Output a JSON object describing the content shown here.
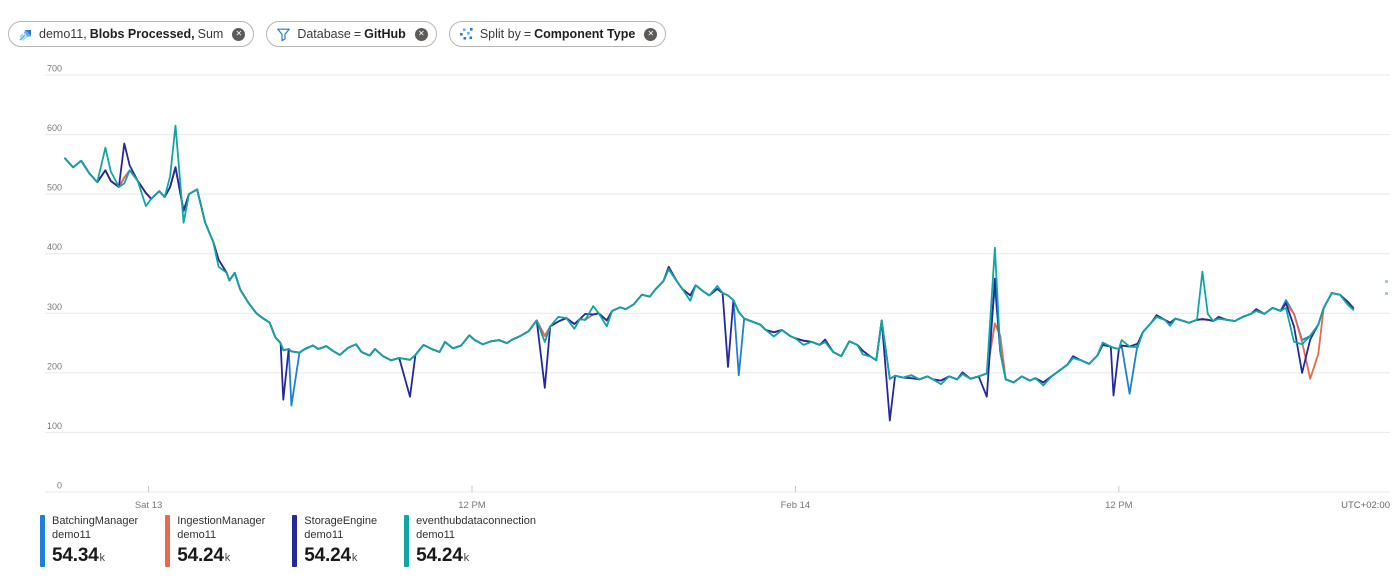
{
  "pills": [
    {
      "icon": "metrics-chart-icon",
      "seg1": "demo11,",
      "seg2": "Blobs Processed,",
      "seg3": "Sum",
      "close": "✕"
    },
    {
      "icon": "filter-funnel-icon",
      "label": "Database",
      "eq": "=",
      "value": "GitHub",
      "close": "✕"
    },
    {
      "icon": "split-by-icon",
      "label": "Split by",
      "eq": "=",
      "value": "Component Type",
      "close": "✕"
    }
  ],
  "ui": {
    "pill_icon_blue": "#2f76d2",
    "pill_icon_light_blue": "#5eb2f2",
    "grid_color": "#e8e8e8",
    "tick_color": "#c8c6c4",
    "axis_label_color": "#7a7875",
    "edge_marker_color": "#a9c7e8"
  },
  "legend": {
    "items": [
      {
        "name": "BatchingManager",
        "scope": "demo11",
        "value": "54.34",
        "unit": "k",
        "color": "#1f7ed8"
      },
      {
        "name": "IngestionManager",
        "scope": "demo11",
        "value": "54.24",
        "unit": "k",
        "color": "#e8694e"
      },
      {
        "name": "StorageEngine",
        "scope": "demo11",
        "value": "54.24",
        "unit": "k",
        "color": "#242a9b"
      },
      {
        "name": "eventhubdataconnection",
        "scope": "demo11",
        "value": "54.24",
        "unit": "k",
        "color": "#12a5a6"
      }
    ]
  },
  "chart_data": {
    "type": "line",
    "title": "demo11, Blobs Processed, Sum — split by Component Type (filter Database = GitHub)",
    "y_axis": {
      "min": 0,
      "max": 700,
      "step": 100
    },
    "x_axis": {
      "domain_hours": [
        -3.1,
        46.06
      ],
      "ticks": [
        {
          "h": 0,
          "label": "Sat 13"
        },
        {
          "h": 12,
          "label": "12 PM"
        },
        {
          "h": 24,
          "label": "Feb 14"
        },
        {
          "h": 36,
          "label": "12 PM"
        }
      ],
      "timezone_label": "UTC+02:00"
    },
    "x_hours": [
      -3.1,
      -2.8,
      -2.5,
      -2.2,
      -1.9,
      -1.6,
      -1.4,
      -1.1,
      -0.9,
      -0.7,
      -0.4,
      -0.1,
      0.1,
      0.4,
      0.6,
      0.8,
      1.0,
      1.3,
      1.5,
      1.8,
      2.1,
      2.4,
      2.6,
      2.9,
      3.0,
      3.2,
      3.4,
      3.7,
      4.0,
      4.2,
      4.5,
      4.7,
      4.9,
      5.0,
      5.2,
      5.3,
      5.6,
      5.8,
      6.1,
      6.3,
      6.6,
      6.8,
      7.1,
      7.4,
      7.7,
      7.9,
      8.2,
      8.4,
      8.7,
      9.0,
      9.3,
      9.7,
      9.9,
      10.2,
      10.5,
      10.8,
      11.0,
      11.3,
      11.6,
      11.9,
      12.1,
      12.4,
      12.7,
      13.0,
      13.3,
      13.5,
      13.8,
      14.1,
      14.4,
      14.7,
      14.9,
      15.2,
      15.5,
      15.8,
      16.0,
      16.2,
      16.5,
      16.7,
      17.0,
      17.2,
      17.5,
      17.7,
      18.0,
      18.3,
      18.6,
      18.8,
      19.1,
      19.3,
      19.6,
      19.8,
      20.1,
      20.3,
      20.6,
      20.8,
      21.1,
      21.3,
      21.5,
      21.7,
      21.9,
      22.1,
      22.4,
      22.7,
      22.9,
      23.2,
      23.5,
      23.8,
      24.0,
      24.3,
      24.6,
      24.9,
      25.1,
      25.4,
      25.7,
      26.0,
      26.3,
      26.5,
      26.8,
      27.0,
      27.2,
      27.5,
      27.7,
      28.0,
      28.3,
      28.6,
      28.9,
      29.1,
      29.4,
      29.7,
      30.0,
      30.2,
      30.5,
      30.8,
      31.1,
      31.4,
      31.6,
      31.8,
      32.1,
      32.4,
      32.7,
      32.9,
      33.2,
      33.5,
      33.8,
      34.1,
      34.3,
      34.6,
      34.9,
      35.2,
      35.4,
      35.7,
      35.8,
      36.0,
      36.1,
      36.4,
      36.7,
      36.9,
      37.2,
      37.4,
      37.7,
      37.9,
      38.1,
      38.4,
      38.6,
      38.9,
      39.1,
      39.3,
      39.5,
      39.7,
      40.0,
      40.3,
      40.6,
      40.9,
      41.1,
      41.4,
      41.7,
      42.0,
      42.2,
      42.5,
      42.8,
      43.1,
      43.4,
      43.6,
      43.9,
      44.2,
      44.5,
      44.7
    ],
    "base_values": [
      560,
      545,
      556,
      535,
      520,
      540,
      522,
      512,
      528,
      540,
      522,
      502,
      492,
      505,
      495,
      512,
      545,
      472,
      500,
      508,
      452,
      420,
      390,
      368,
      355,
      368,
      340,
      318,
      300,
      293,
      284,
      260,
      250,
      238,
      240,
      236,
      234,
      240,
      246,
      240,
      245,
      238,
      230,
      242,
      248,
      235,
      229,
      240,
      228,
      221,
      225,
      222,
      230,
      247,
      240,
      235,
      252,
      241,
      246,
      263,
      255,
      248,
      253,
      255,
      250,
      256,
      262,
      270,
      288,
      262,
      278,
      286,
      292,
      282,
      290,
      289,
      298,
      300,
      288,
      304,
      310,
      307,
      315,
      331,
      328,
      340,
      354,
      374,
      354,
      341,
      330,
      347,
      336,
      330,
      341,
      334,
      330,
      322,
      302,
      291,
      286,
      281,
      272,
      268,
      272,
      262,
      258,
      254,
      252,
      247,
      252,
      235,
      228,
      253,
      247,
      237,
      227,
      221,
      288,
      190,
      195,
      192,
      196,
      189,
      194,
      189,
      187,
      194,
      189,
      198,
      190,
      194,
      199,
      345,
      235,
      189,
      184,
      194,
      187,
      191,
      184,
      194,
      204,
      214,
      225,
      221,
      215,
      229,
      247,
      244,
      242,
      240,
      246,
      244,
      249,
      269,
      284,
      294,
      289,
      284,
      291,
      287,
      284,
      289,
      290,
      289,
      287,
      291,
      289,
      287,
      294,
      299,
      304,
      299,
      309,
      304,
      317,
      299,
      252,
      262,
      281,
      309,
      334,
      331,
      319,
      306
    ],
    "series": [
      {
        "name": "BatchingManager",
        "scope": "demo11",
        "legend_value": "54.34k",
        "color": "#1f7ed8",
        "overrides": [
          [
            5.3,
            145
          ],
          [
            21.9,
            196
          ],
          [
            36.4,
            165
          ],
          [
            42.2,
            322
          ],
          [
            42.8,
            255
          ]
        ]
      },
      {
        "name": "IngestionManager",
        "scope": "demo11",
        "legend_value": "54.24k",
        "color": "#e8694e",
        "overrides": [
          [
            31.4,
            283
          ],
          [
            31.6,
            262
          ],
          [
            43.1,
            190
          ],
          [
            43.4,
            232
          ]
        ]
      },
      {
        "name": "StorageEngine",
        "scope": "demo11",
        "legend_value": "54.24k",
        "color": "#242a9b",
        "overrides": [
          [
            -0.9,
            585
          ],
          [
            -0.7,
            548
          ],
          [
            5.0,
            155
          ],
          [
            9.7,
            160
          ],
          [
            14.7,
            175
          ],
          [
            16.2,
            299
          ],
          [
            19.3,
            378
          ],
          [
            21.5,
            210
          ],
          [
            25.1,
            256
          ],
          [
            27.5,
            120
          ],
          [
            28.3,
            191
          ],
          [
            30.2,
            201
          ],
          [
            31.1,
            160
          ],
          [
            31.4,
            358
          ],
          [
            34.3,
            228
          ],
          [
            35.8,
            162
          ],
          [
            37.4,
            297
          ],
          [
            39.7,
            294
          ],
          [
            41.1,
            307
          ],
          [
            42.5,
            278
          ],
          [
            42.8,
            200
          ],
          [
            43.1,
            256
          ],
          [
            44.7,
            309
          ]
        ]
      },
      {
        "name": "eventhubdataconnection",
        "scope": "demo11",
        "legend_value": "54.24k",
        "color": "#12a5a6",
        "overrides": [
          [
            -1.6,
            578
          ],
          [
            -1.4,
            538
          ],
          [
            -0.9,
            518
          ],
          [
            -0.1,
            480
          ],
          [
            0.8,
            530
          ],
          [
            1.0,
            615
          ],
          [
            1.3,
            452
          ],
          [
            2.6,
            378
          ],
          [
            14.7,
            252
          ],
          [
            15.2,
            294
          ],
          [
            15.8,
            274
          ],
          [
            16.5,
            312
          ],
          [
            17.0,
            278
          ],
          [
            20.1,
            321
          ],
          [
            21.1,
            346
          ],
          [
            23.2,
            261
          ],
          [
            24.3,
            247
          ],
          [
            26.5,
            231
          ],
          [
            29.4,
            181
          ],
          [
            31.4,
            410
          ],
          [
            33.2,
            179
          ],
          [
            35.4,
            251
          ],
          [
            36.1,
            255
          ],
          [
            36.7,
            243
          ],
          [
            37.9,
            279
          ],
          [
            39.1,
            370
          ],
          [
            39.3,
            299
          ],
          [
            42.2,
            309
          ],
          [
            42.5,
            252
          ],
          [
            42.8,
            248
          ],
          [
            44.5,
            314
          ]
        ]
      }
    ]
  }
}
